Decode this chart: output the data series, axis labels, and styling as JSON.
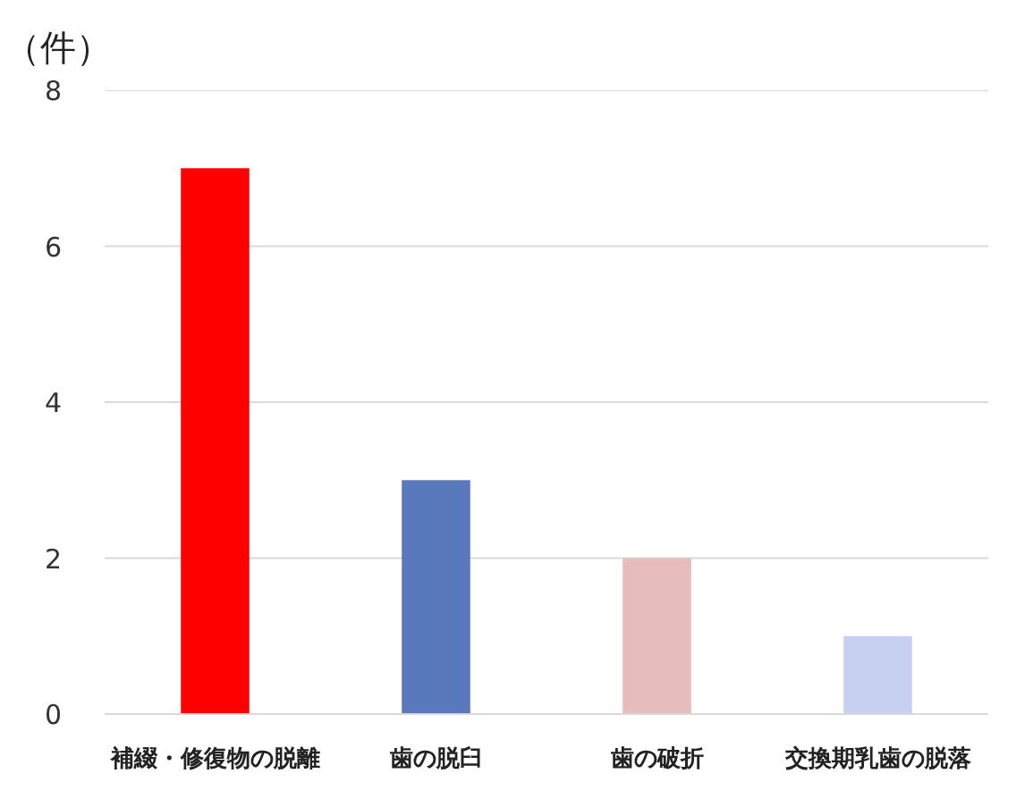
{
  "chart_data": {
    "type": "bar",
    "ylabel": "（件）",
    "categories": [
      "補綴・修復物の脱離",
      "歯の脱臼",
      "歯の破折",
      "交換期乳歯の脱落"
    ],
    "values": [
      7,
      3,
      2,
      1
    ],
    "colors": [
      "#ff0000",
      "#5a78bc",
      "#e6bcbc",
      "#c8d0f2"
    ],
    "ylim": [
      0,
      8
    ],
    "yticks": [
      0,
      2,
      4,
      6,
      8
    ],
    "grid": "y"
  }
}
